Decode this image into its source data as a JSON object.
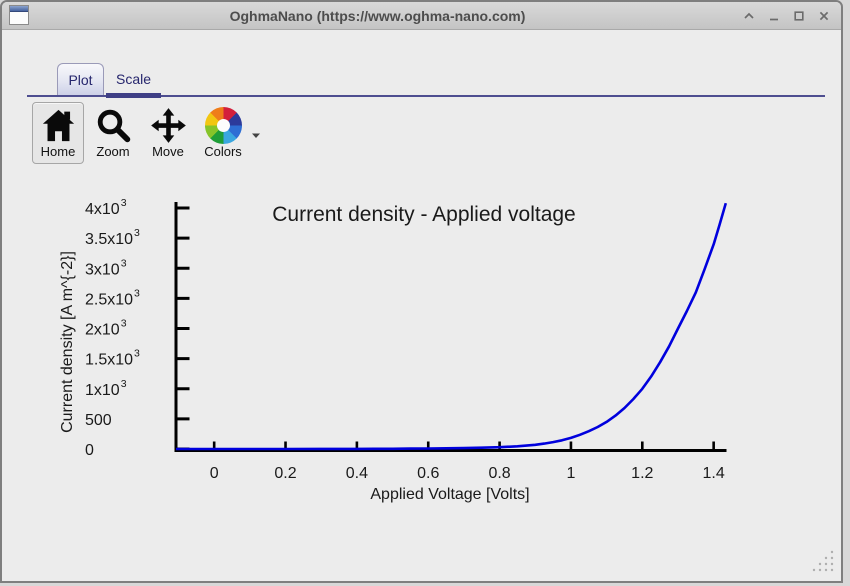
{
  "window": {
    "title": "OghmaNano (https://www.oghma-nano.com)"
  },
  "tabs": [
    {
      "label": "Plot",
      "active": true
    },
    {
      "label": "Scale",
      "active": false
    }
  ],
  "toolbar": {
    "items": [
      {
        "label": "Home",
        "icon": "home-icon",
        "active": true
      },
      {
        "label": "Zoom",
        "icon": "zoom-icon",
        "active": false
      },
      {
        "label": "Move",
        "icon": "move-icon",
        "active": false
      },
      {
        "label": "Colors",
        "icon": "color-wheel-icon",
        "active": false
      }
    ]
  },
  "colors": {
    "curve": "#0000dd",
    "tab_accent": "#3f3f85",
    "pane_line": "#4e4e90",
    "window_bg": "#ececec"
  },
  "chart_data": {
    "type": "line",
    "title": "Current density - Applied voltage",
    "xlabel": "Applied Voltage [Volts]",
    "ylabel": "Current density [A m^{-2}]",
    "xlim": [
      -0.107,
      1.436
    ],
    "ylim": [
      -70,
      4090
    ],
    "grid": false,
    "legend": null,
    "x_ticks": [
      0,
      0.2,
      0.4,
      0.6,
      0.8,
      1,
      1.2,
      1.4
    ],
    "x_tick_labels": [
      "0",
      "0.2",
      "0.4",
      "0.6",
      "0.8",
      "1",
      "1.2",
      "1.4"
    ],
    "y_ticks": [
      0,
      500,
      1000,
      1500,
      2000,
      2500,
      3000,
      3500,
      4000
    ],
    "y_tick_labels": [
      {
        "m": "0"
      },
      {
        "m": "500"
      },
      {
        "m": "1x10",
        "e": "3"
      },
      {
        "m": "1.5x10",
        "e": "3"
      },
      {
        "m": "2x10",
        "e": "3"
      },
      {
        "m": "2.5x10",
        "e": "3"
      },
      {
        "m": "3x10",
        "e": "3"
      },
      {
        "m": "3.5x10",
        "e": "3"
      },
      {
        "m": "4x10",
        "e": "3"
      }
    ],
    "series": [
      {
        "name": "Current density",
        "color": "#0000dd",
        "points": [
          [
            -0.107,
            0
          ],
          [
            0,
            0
          ],
          [
            0.1,
            0
          ],
          [
            0.2,
            0
          ],
          [
            0.3,
            1
          ],
          [
            0.4,
            2
          ],
          [
            0.45,
            3
          ],
          [
            0.5,
            4
          ],
          [
            0.55,
            6
          ],
          [
            0.6,
            8
          ],
          [
            0.65,
            11
          ],
          [
            0.7,
            15
          ],
          [
            0.75,
            21
          ],
          [
            0.8,
            30
          ],
          [
            0.85,
            45
          ],
          [
            0.9,
            70
          ],
          [
            0.925,
            90
          ],
          [
            0.95,
            115
          ],
          [
            0.975,
            145
          ],
          [
            1.0,
            185
          ],
          [
            1.025,
            235
          ],
          [
            1.05,
            295
          ],
          [
            1.075,
            365
          ],
          [
            1.1,
            450
          ],
          [
            1.125,
            555
          ],
          [
            1.15,
            680
          ],
          [
            1.175,
            830
          ],
          [
            1.2,
            1000
          ],
          [
            1.225,
            1205
          ],
          [
            1.25,
            1440
          ],
          [
            1.275,
            1705
          ],
          [
            1.3,
            2000
          ],
          [
            1.325,
            2290
          ],
          [
            1.35,
            2600
          ],
          [
            1.375,
            2990
          ],
          [
            1.4,
            3400
          ],
          [
            1.417,
            3730
          ],
          [
            1.434,
            4080
          ]
        ]
      }
    ]
  }
}
